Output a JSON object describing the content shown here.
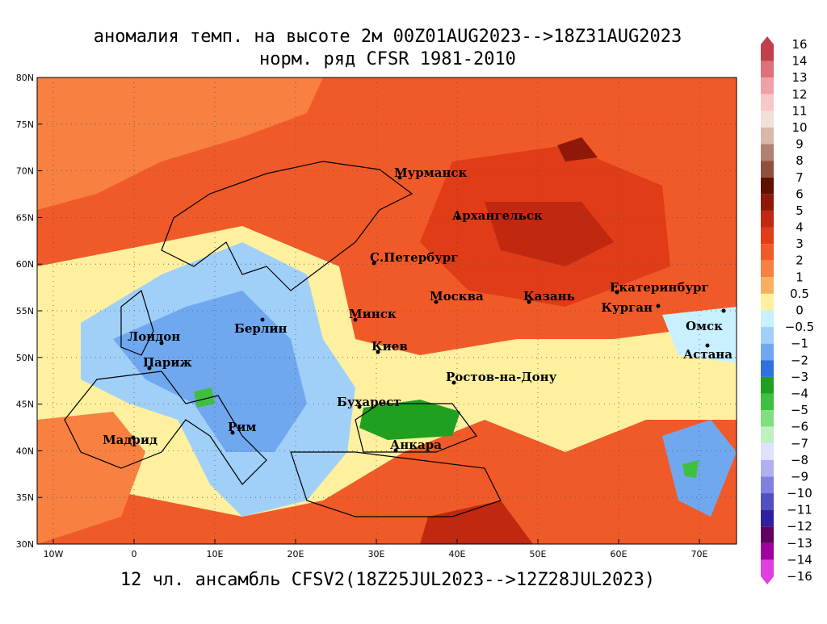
{
  "title": [
    "аномалия темп. на высоте 2м 00Z01AUG2023-->18Z31AUG2023",
    "норм. ряд CFSR 1981-2010"
  ],
  "footer": "12 чл. ансамбль CFSV2(18Z25JUL2023-->12Z28JUL2023)",
  "lat_labels": [
    "80N",
    "75N",
    "70N",
    "65N",
    "60N",
    "55N",
    "50N",
    "45N",
    "40N",
    "35N",
    "30N"
  ],
  "lon_labels": [
    "10W",
    "0",
    "10E",
    "20E",
    "30E",
    "40E",
    "50E",
    "60E",
    "70E"
  ],
  "cities": [
    "Мурманск",
    "Архангельск",
    "С.Петербург",
    "Москва",
    "Казань",
    "Екатеринбург",
    "Курган",
    "Омск",
    "Астана",
    "Минск",
    "Киев",
    "Берлин",
    "Лондон",
    "Париж",
    "Ростов-на-Дону",
    "Бухарест",
    "Рим",
    "Анкара",
    "Мадрид"
  ],
  "colorbar": {
    "labels": [
      "16",
      "14",
      "13",
      "12",
      "11",
      "10",
      "9",
      "8",
      "7",
      "6",
      "5",
      "4",
      "3",
      "2",
      "1",
      "0.5",
      "0",
      "−0.5",
      "−1",
      "−2",
      "−3",
      "−4",
      "−5",
      "−6",
      "−7",
      "−8",
      "−9",
      "−10",
      "−11",
      "−12",
      "−13",
      "−14",
      "−16"
    ],
    "colors": [
      "#c0404c",
      "#e0707a",
      "#f0a0a8",
      "#f8c8c8",
      "#f0e0d8",
      "#d8b8a8",
      "#b08070",
      "#905040",
      "#601000",
      "#901808",
      "#c02810",
      "#e03c18",
      "#f05a28",
      "#f88040",
      "#f8b060",
      "#fff0a0",
      "#c8f0ff",
      "#a0d0f8",
      "#70a8f0",
      "#3070e0",
      "#20a020",
      "#40c040",
      "#80e080",
      "#c0f0c0",
      "#e0e0ff",
      "#b0b0f0",
      "#8080e0",
      "#5050c0",
      "#3020a0",
      "#600060",
      "#a000a0",
      "#e040e0"
    ]
  }
}
